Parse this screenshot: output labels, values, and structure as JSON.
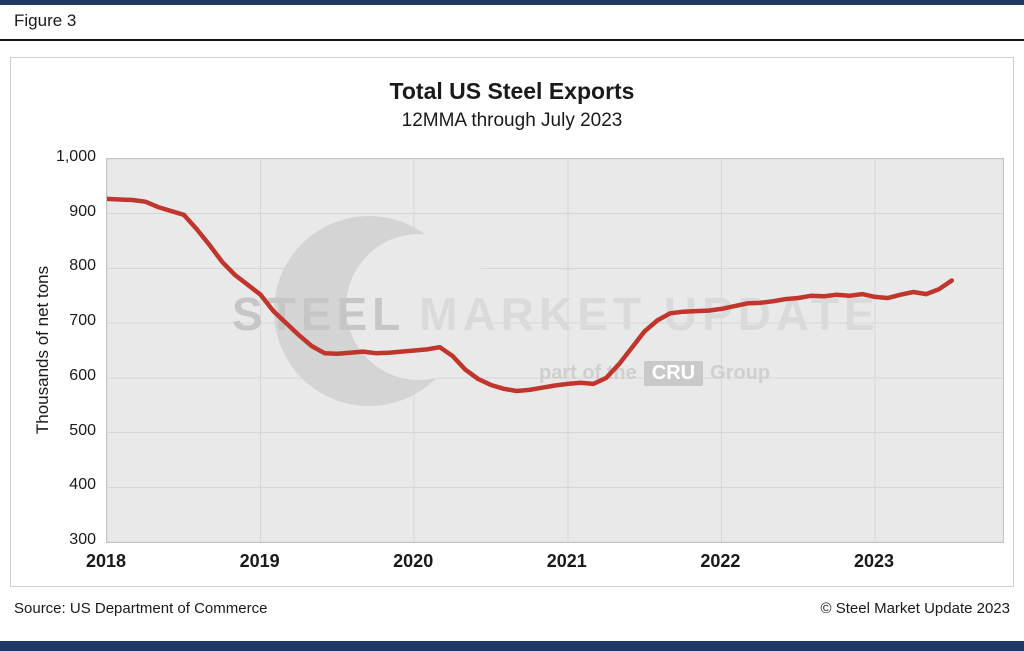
{
  "page": {
    "figure_label": "Figure 3",
    "footer_source": "Source: US Department of Commerce",
    "footer_copyright": "© Steel Market Update 2023"
  },
  "colors": {
    "accent_bar": "#203864",
    "line": "#c0362c",
    "plot_bg": "#e9e9ea",
    "grid": "#d6d6d6"
  },
  "watermark": {
    "word1": "STEEL",
    "word2": "MARKET UPDATE",
    "tagline_prefix": "part of the",
    "tagline_box": "CRU",
    "tagline_suffix": "Group"
  },
  "chart_data": {
    "type": "line",
    "title": "Total US Steel Exports",
    "subtitle": "12MMA through July 2023",
    "ylabel": "Thousands of net tons",
    "ylim": [
      300,
      1000
    ],
    "ytick_step": 100,
    "ytick_labels": [
      "300",
      "400",
      "500",
      "600",
      "700",
      "800",
      "900",
      "1,000"
    ],
    "x_start": "2018-01",
    "x_end": "2023-07",
    "x_span_months": 70,
    "x_tick_labels": [
      "2018",
      "2019",
      "2020",
      "2021",
      "2022",
      "2023"
    ],
    "x_tick_month_index": [
      0,
      12,
      24,
      36,
      48,
      60
    ],
    "grid": true,
    "legend": "none",
    "series": [
      {
        "name": "Total US Steel Exports (12MMA, thousands of net tons)",
        "values": [
          927,
          926,
          925,
          922,
          912,
          905,
          898,
          872,
          843,
          812,
          788,
          770,
          752,
          722,
          700,
          678,
          658,
          645,
          644,
          646,
          648,
          645,
          646,
          648,
          650,
          652,
          656,
          640,
          615,
          598,
          587,
          580,
          576,
          578,
          582,
          586,
          589,
          591,
          589,
          600,
          625,
          655,
          685,
          705,
          718,
          721,
          722,
          723,
          726,
          731,
          736,
          737,
          740,
          744,
          746,
          750,
          749,
          752,
          750,
          753,
          748,
          746,
          752,
          757,
          753,
          762,
          778
        ]
      }
    ]
  }
}
